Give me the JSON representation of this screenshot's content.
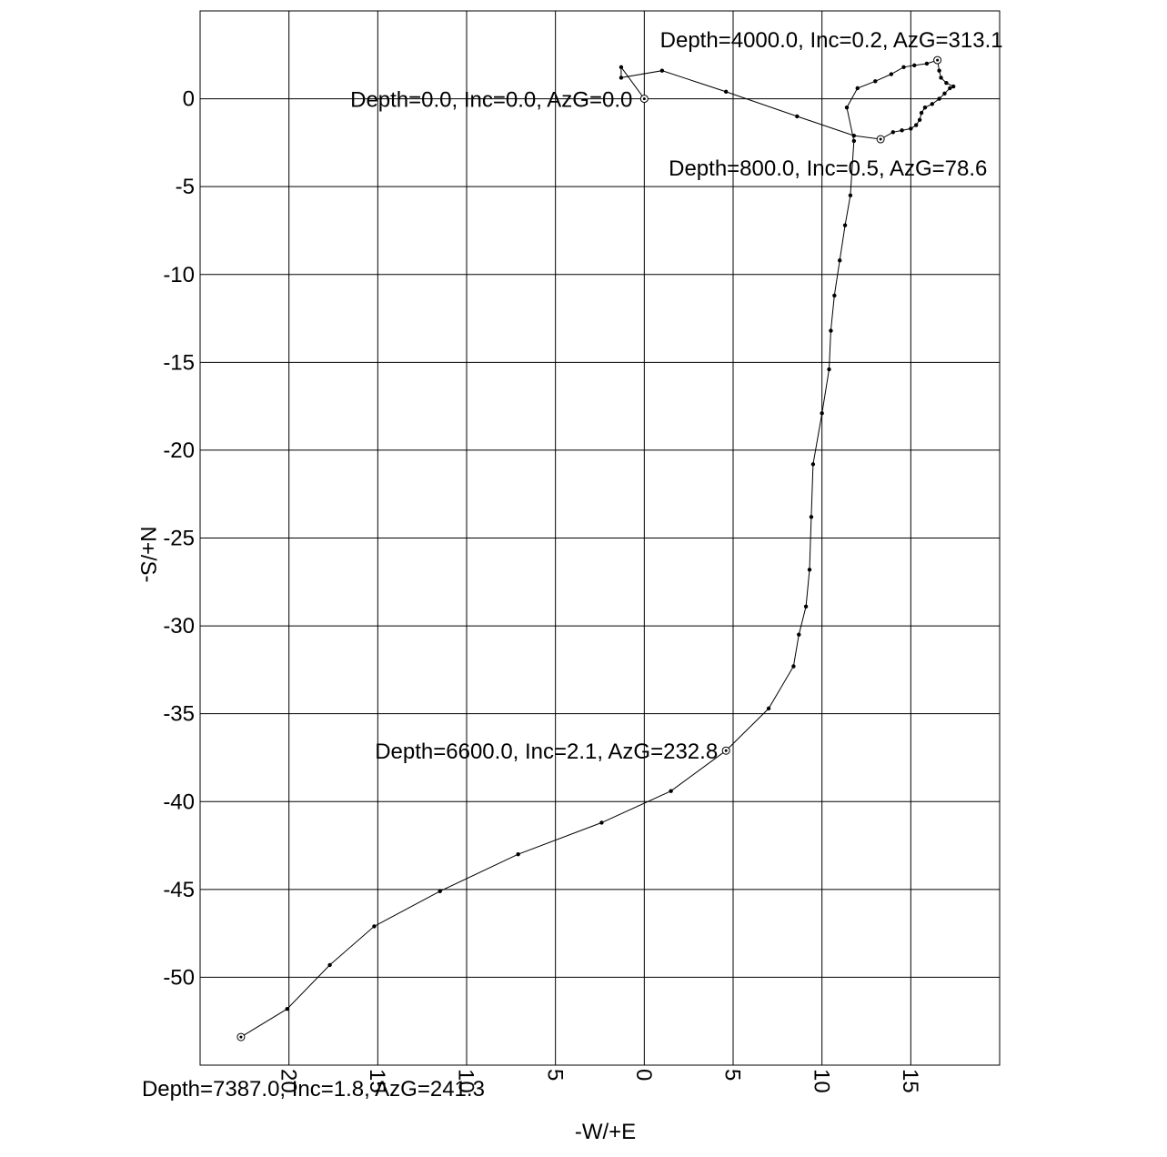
{
  "chart_data": {
    "type": "line",
    "xlabel": "-W/+E",
    "ylabel": "N+/S-",
    "xlim": [
      -25,
      20
    ],
    "ylim": [
      -55,
      5
    ],
    "grid": true,
    "x_ticks": [
      {
        "value": -20,
        "label": "20"
      },
      {
        "value": -15,
        "label": "15"
      },
      {
        "value": -10,
        "label": "10"
      },
      {
        "value": -5,
        "label": "5"
      },
      {
        "value": 0,
        "label": "0"
      },
      {
        "value": 5,
        "label": "5"
      },
      {
        "value": 10,
        "label": "10"
      },
      {
        "value": 15,
        "label": "15"
      }
    ],
    "y_ticks": [
      0,
      -5,
      -10,
      -15,
      -20,
      -25,
      -30,
      -35,
      -40,
      -45,
      -50
    ],
    "points": [
      [
        0.0,
        0.0
      ],
      [
        -1.3,
        1.8
      ],
      [
        -1.3,
        1.2
      ],
      [
        1.0,
        1.6
      ],
      [
        4.6,
        0.4
      ],
      [
        8.6,
        -1.0
      ],
      [
        11.8,
        -2.1
      ],
      [
        13.3,
        -2.3
      ],
      [
        14.0,
        -1.9
      ],
      [
        14.5,
        -1.8
      ],
      [
        15.0,
        -1.7
      ],
      [
        15.3,
        -1.5
      ],
      [
        15.5,
        -1.2
      ],
      [
        15.6,
        -0.8
      ],
      [
        15.8,
        -0.5
      ],
      [
        16.2,
        -0.3
      ],
      [
        16.6,
        0.0
      ],
      [
        16.9,
        0.3
      ],
      [
        17.2,
        0.6
      ],
      [
        17.4,
        0.7
      ],
      [
        17.0,
        0.9
      ],
      [
        16.7,
        1.2
      ],
      [
        16.6,
        1.6
      ],
      [
        16.5,
        2.2
      ],
      [
        15.9,
        2.0
      ],
      [
        15.2,
        1.9
      ],
      [
        14.6,
        1.8
      ],
      [
        13.9,
        1.4
      ],
      [
        13.0,
        1.0
      ],
      [
        12.0,
        0.6
      ],
      [
        11.4,
        -0.5
      ],
      [
        11.8,
        -2.4
      ],
      [
        11.6,
        -5.5
      ],
      [
        11.3,
        -7.2
      ],
      [
        11.0,
        -9.2
      ],
      [
        10.7,
        -11.2
      ],
      [
        10.5,
        -13.2
      ],
      [
        10.4,
        -15.4
      ],
      [
        10.0,
        -17.9
      ],
      [
        9.5,
        -20.8
      ],
      [
        9.4,
        -23.8
      ],
      [
        9.3,
        -26.8
      ],
      [
        9.1,
        -28.9
      ],
      [
        8.7,
        -30.5
      ],
      [
        8.4,
        -32.3
      ],
      [
        7.0,
        -34.7
      ],
      [
        4.6,
        -37.1
      ],
      [
        1.5,
        -39.4
      ],
      [
        -2.4,
        -41.2
      ],
      [
        -7.1,
        -43.0
      ],
      [
        -11.5,
        -45.1
      ],
      [
        -15.2,
        -47.1
      ],
      [
        -17.7,
        -49.3
      ],
      [
        -20.1,
        -51.8
      ],
      [
        -22.7,
        -53.4
      ]
    ],
    "markers": [
      [
        0.0,
        0.0
      ],
      [
        16.5,
        2.2
      ],
      [
        13.3,
        -2.3
      ],
      [
        4.6,
        -37.1
      ],
      [
        -22.7,
        -53.4
      ]
    ],
    "annotations": [
      {
        "text": "Depth=0.0, Inc=0.0, AzG=0.0",
        "x": 0.0,
        "y": 0.0
      },
      {
        "text": "Depth=4000.0, Inc=0.2, AzG=313.1",
        "x": 16.5,
        "y": 2.2
      },
      {
        "text": "Depth=800.0, Inc=0.5, AzG=78.6",
        "x": 13.3,
        "y": -2.3
      },
      {
        "text": "Depth=6600.0, Inc=2.1, AzG=232.8",
        "x": 4.6,
        "y": -37.1
      },
      {
        "text": "Depth=7387.0, Inc=1.8, AzG=241.3",
        "x": -22.7,
        "y": -53.4
      }
    ]
  }
}
